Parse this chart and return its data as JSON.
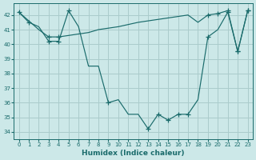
{
  "xlabel": "Humidex (Indice chaleur)",
  "bg_color": "#cce8e8",
  "grid_color": "#aacccc",
  "line_color": "#1a6b6b",
  "xlim": [
    -0.5,
    23.5
  ],
  "ylim": [
    33.5,
    42.8
  ],
  "xticks": [
    0,
    1,
    2,
    3,
    4,
    5,
    6,
    7,
    8,
    9,
    10,
    11,
    12,
    13,
    14,
    15,
    16,
    17,
    18,
    19,
    20,
    21,
    22,
    23
  ],
  "yticks": [
    34,
    35,
    36,
    37,
    38,
    39,
    40,
    41,
    42
  ],
  "series1_x": [
    0,
    1,
    2,
    3,
    4,
    5,
    6,
    7,
    8,
    9,
    10,
    11,
    12,
    13,
    14,
    15,
    16,
    17,
    18,
    19,
    20,
    21,
    22,
    23
  ],
  "series1_y": [
    42.2,
    41.5,
    41.2,
    40.2,
    40.2,
    42.3,
    41.2,
    38.5,
    38.5,
    36.0,
    36.2,
    35.2,
    35.2,
    34.2,
    35.2,
    34.8,
    35.2,
    35.2,
    36.2,
    40.5,
    41.0,
    42.2,
    39.5,
    42.3
  ],
  "series2_x": [
    0,
    1,
    2,
    3,
    4,
    5,
    6,
    7,
    8,
    9,
    10,
    11,
    12,
    13,
    14,
    15,
    16,
    17,
    18,
    19,
    20,
    21,
    22,
    23
  ],
  "series2_y": [
    42.2,
    41.6,
    41.0,
    40.5,
    40.5,
    40.6,
    40.7,
    40.8,
    41.0,
    41.1,
    41.2,
    41.35,
    41.5,
    41.6,
    41.7,
    41.8,
    41.9,
    42.0,
    41.5,
    42.0,
    42.1,
    42.3,
    39.5,
    42.3
  ],
  "markers1_x": [
    0,
    1,
    3,
    4,
    5,
    9,
    13,
    14,
    15,
    16,
    17,
    19,
    21,
    22,
    23
  ],
  "markers1_y": [
    42.2,
    41.5,
    40.2,
    40.2,
    42.3,
    36.0,
    34.2,
    35.2,
    34.8,
    35.2,
    35.2,
    40.5,
    42.2,
    39.5,
    42.3
  ],
  "markers2_x": [
    3,
    4,
    19,
    20,
    21,
    22,
    23
  ],
  "markers2_y": [
    40.5,
    40.5,
    42.0,
    42.1,
    42.3,
    39.5,
    42.3
  ]
}
